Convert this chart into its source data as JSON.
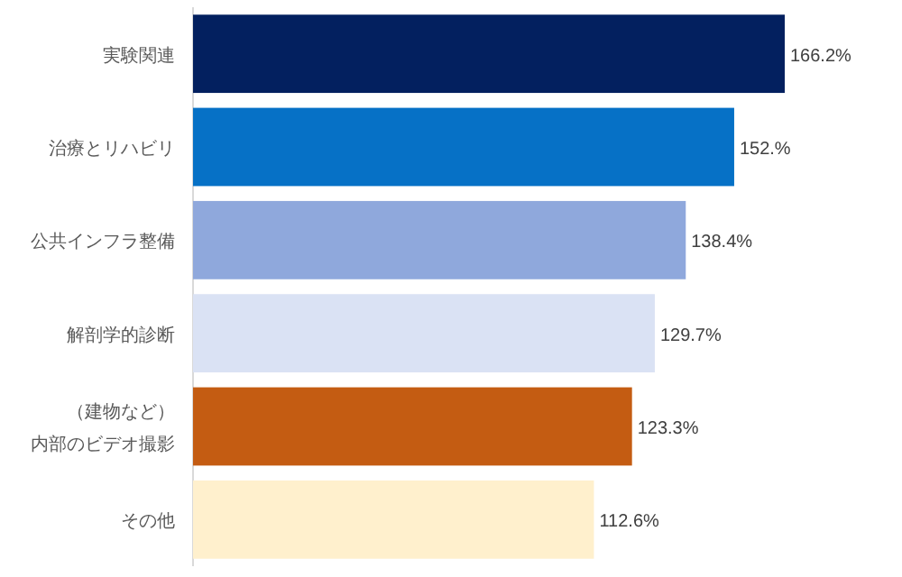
{
  "chart_data": {
    "type": "bar",
    "orientation": "horizontal",
    "categories": [
      "実験関連",
      "治療とリハビリ",
      "公共インフラ整備",
      "解剖学的診断",
      "（建物など）内部のビデオ撮影",
      "その他"
    ],
    "values": [
      166.2,
      152,
      138.4,
      129.7,
      123.3,
      112.6
    ],
    "colors": [
      "#03205f",
      "#0671c6",
      "#8fa8dc",
      "#dae2f4",
      "#c45c12",
      "#fff0cd"
    ],
    "value_labels": [
      "166.2%",
      "152.%",
      "138.4%",
      "129.7%",
      "123.3%",
      "112.6%"
    ]
  }
}
